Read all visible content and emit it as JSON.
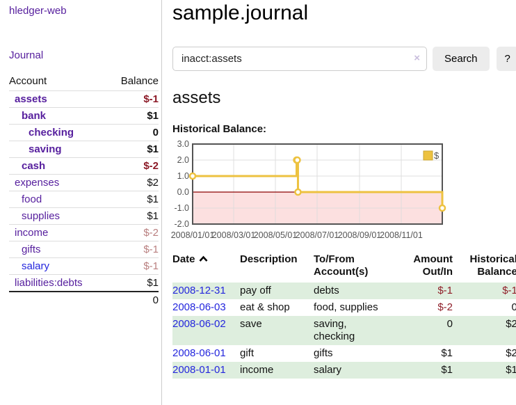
{
  "app": {
    "title": "hledger-web"
  },
  "sidebar": {
    "nav_journal": "Journal",
    "accounts": {
      "col_account": "Account",
      "col_balance": "Balance",
      "rows": [
        {
          "name": "assets",
          "depth": 0,
          "active": true,
          "link": "purple",
          "balance": "$-1"
        },
        {
          "name": "bank",
          "depth": 1,
          "active": true,
          "link": "purple",
          "balance": "$1"
        },
        {
          "name": "checking",
          "depth": 2,
          "active": true,
          "link": "purple",
          "balance": "0"
        },
        {
          "name": "saving",
          "depth": 2,
          "active": true,
          "link": "purple",
          "balance": "$1"
        },
        {
          "name": "cash",
          "depth": 1,
          "active": true,
          "link": "purple",
          "balance": "$-2"
        },
        {
          "name": "expenses",
          "depth": 0,
          "active": false,
          "link": "purple",
          "balance": "$2"
        },
        {
          "name": "food",
          "depth": 1,
          "active": false,
          "link": "purple",
          "balance": "$1"
        },
        {
          "name": "supplies",
          "depth": 1,
          "active": false,
          "link": "purple",
          "balance": "$1"
        },
        {
          "name": "income",
          "depth": 0,
          "active": false,
          "link": "purple",
          "balance": "$-2"
        },
        {
          "name": "gifts",
          "depth": 1,
          "active": false,
          "link": "purple",
          "balance": "$-1"
        },
        {
          "name": "salary",
          "depth": 1,
          "active": false,
          "link": "blue",
          "balance": "$-1"
        },
        {
          "name": "liabilities:debts",
          "depth": 0,
          "active": false,
          "link": "purple",
          "balance": "$1"
        }
      ],
      "total": "0"
    }
  },
  "main": {
    "title": "sample.journal",
    "search": {
      "value": "inacct:assets",
      "clear_icon": "×",
      "search_label": "Search",
      "help_label": "?"
    },
    "account_heading": "assets",
    "chart_title": "Historical Balance:",
    "register": {
      "sort_icon": "chevron-up",
      "headers": {
        "date": "Date",
        "description": "Description",
        "account_lines": [
          "To/From",
          "Account(s)"
        ],
        "amount_lines": [
          "Amount",
          "Out/In"
        ],
        "balance_lines": [
          "Historical",
          "Balance"
        ]
      },
      "rows": [
        {
          "date": "2008-12-31",
          "description": "pay off",
          "account_lines": [
            "debts"
          ],
          "amount": "$-1",
          "balance": "$-1"
        },
        {
          "date": "2008-06-03",
          "description": "eat & shop",
          "account_lines": [
            "food, supplies"
          ],
          "amount": "$-2",
          "balance": "0"
        },
        {
          "date": "2008-06-02",
          "description": "save",
          "account_lines": [
            "saving,",
            "checking"
          ],
          "amount": "0",
          "balance": "$2"
        },
        {
          "date": "2008-06-01",
          "description": "gift",
          "account_lines": [
            "gifts"
          ],
          "amount": "$1",
          "balance": "$2"
        },
        {
          "date": "2008-01-01",
          "description": "income",
          "account_lines": [
            "salary"
          ],
          "amount": "$1",
          "balance": "$1"
        }
      ]
    }
  },
  "chart_data": {
    "type": "line",
    "step": true,
    "title": "Historical Balance",
    "x_range": [
      "2008-01-01",
      "2008-12-31"
    ],
    "ylim": [
      -2,
      3
    ],
    "y_ticks": [
      3.0,
      2.0,
      1.0,
      0.0,
      -1.0,
      -2.0
    ],
    "x_ticks": [
      "2008/01/01",
      "2008/03/01",
      "2008/05/01",
      "2008/07/01",
      "2008/09/01",
      "2008/11/01"
    ],
    "series": [
      {
        "name": "$",
        "color": "#edc240",
        "points": [
          [
            "2008-01-01",
            1
          ],
          [
            "2008-06-01",
            2
          ],
          [
            "2008-06-02",
            2
          ],
          [
            "2008-06-03",
            0
          ],
          [
            "2008-12-31",
            -1
          ]
        ]
      }
    ],
    "legend_position": "top-right",
    "grid": true,
    "grid_color": "#dcdcdc",
    "border_color": "#545454",
    "axis_text_color": "#545454",
    "zero_line_color": "#8b0000",
    "negative_region_color": "#fbdada"
  },
  "colors": {
    "link_purple": "#57209e",
    "link_blue": "#2426dd",
    "negative_strong": "#8c1a27",
    "negative_soft": "#b97f7f",
    "table_negative": "#8f1e28",
    "row_stripe_green": "#deeede",
    "chart_yellow": "#edc240"
  }
}
